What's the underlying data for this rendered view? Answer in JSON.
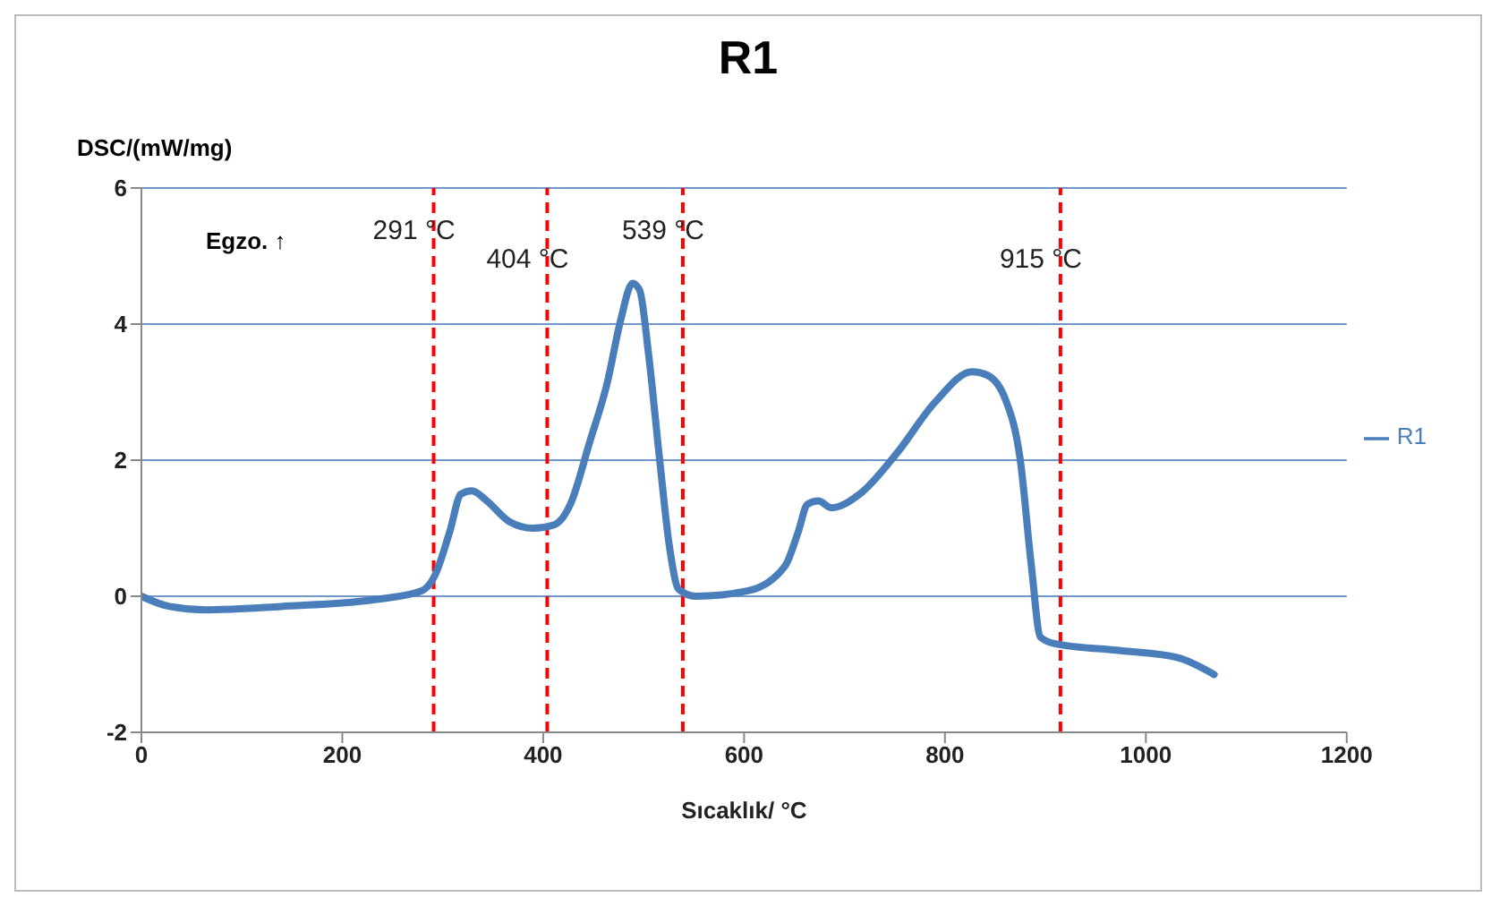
{
  "chart_data": {
    "type": "line",
    "title": "R1",
    "xlabel": "Sıcaklık/  °C",
    "ylabel": "DSC/(mW/mg)",
    "annotations": [
      "Egzo. ↑"
    ],
    "series": [
      {
        "name": "R1",
        "color": "#4a7ebb",
        "x": [
          0,
          28,
          65,
          139,
          232,
          279,
          292,
          307,
          318,
          329,
          344,
          366,
          390,
          411,
          427,
          446,
          464,
          477,
          489,
          496,
          505,
          516,
          526,
          535,
          552,
          604,
          641,
          654,
          663,
          674,
          687,
          715,
          752,
          790,
          827,
          842,
          860,
          875,
          886,
          895,
          910,
          975,
          1031,
          1068
        ],
        "values": [
          0,
          -0.15,
          -0.2,
          -0.15,
          -0.05,
          0.08,
          0.3,
          0.95,
          1.5,
          1.55,
          1.4,
          1.1,
          1.0,
          1.05,
          1.35,
          2.25,
          3.15,
          4.05,
          4.6,
          4.5,
          3.55,
          2.0,
          0.7,
          0.1,
          0,
          0.08,
          0.45,
          0.95,
          1.35,
          1.4,
          1.3,
          1.5,
          2.1,
          2.85,
          3.3,
          3.25,
          2.9,
          2.0,
          0.45,
          -0.6,
          -0.7,
          -0.8,
          -0.9,
          -1.15
        ]
      }
    ],
    "ref_lines": [
      {
        "axis": "x",
        "value": 291,
        "label": "291 °C",
        "color": "#ff0000",
        "line_style": "dashed"
      },
      {
        "axis": "x",
        "value": 404,
        "label": "404 °C",
        "color": "#ff0000",
        "line_style": "dashed"
      },
      {
        "axis": "x",
        "value": 539,
        "label": "539 °C",
        "color": "#ff0000",
        "line_style": "dashed"
      },
      {
        "axis": "x",
        "value": 915,
        "label": "915 °C",
        "color": "#ff0000",
        "line_style": "dashed"
      }
    ],
    "xlim": [
      0,
      1200
    ],
    "xticks": [
      0,
      200,
      400,
      600,
      800,
      1000,
      1200
    ],
    "ylim": [
      -2,
      6
    ],
    "yticks": [
      -2,
      0,
      2,
      4,
      6
    ],
    "grid": "y",
    "legend": "right",
    "marker": "none",
    "line_style": "solid"
  }
}
